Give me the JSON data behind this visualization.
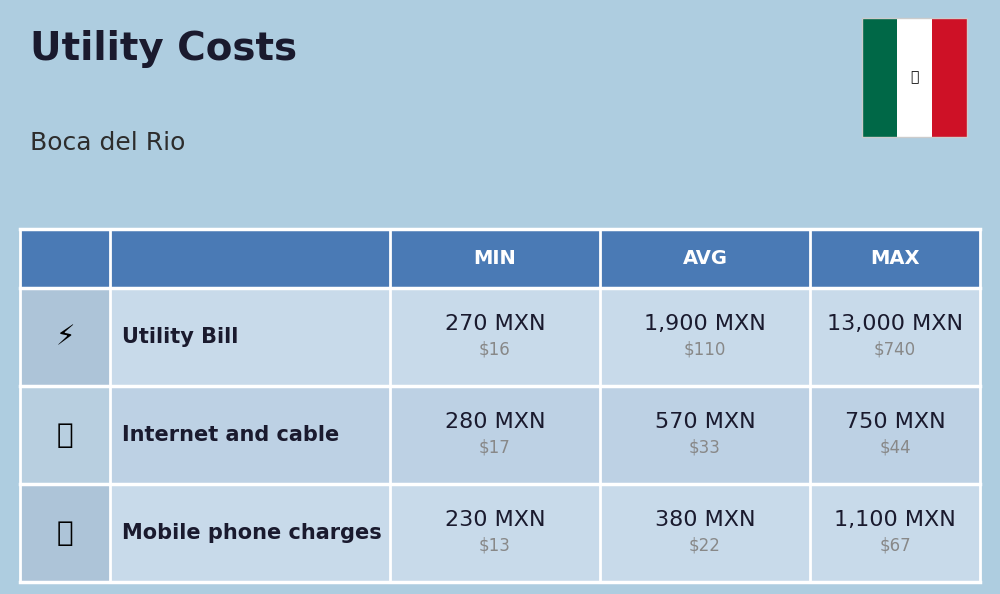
{
  "title": "Utility Costs",
  "subtitle": "Boca del Rio",
  "background_color": "#aecde0",
  "table_header_color": "#4a7ab5",
  "table_header_text_color": "#ffffff",
  "table_row_color_1": "#c8daea",
  "table_row_color_2": "#bdd1e4",
  "col_headers": [
    "MIN",
    "AVG",
    "MAX"
  ],
  "rows": [
    {
      "label": "Utility Bill",
      "min_mxn": "270 MXN",
      "min_usd": "$16",
      "avg_mxn": "1,900 MXN",
      "avg_usd": "$110",
      "max_mxn": "13,000 MXN",
      "max_usd": "$740"
    },
    {
      "label": "Internet and cable",
      "min_mxn": "280 MXN",
      "min_usd": "$17",
      "avg_mxn": "570 MXN",
      "avg_usd": "$33",
      "max_mxn": "750 MXN",
      "max_usd": "$44"
    },
    {
      "label": "Mobile phone charges",
      "min_mxn": "230 MXN",
      "min_usd": "$13",
      "avg_mxn": "380 MXN",
      "avg_usd": "$22",
      "max_mxn": "1,100 MXN",
      "max_usd": "$67"
    }
  ],
  "title_fontsize": 28,
  "subtitle_fontsize": 18,
  "header_fontsize": 14,
  "cell_mxn_fontsize": 16,
  "cell_usd_fontsize": 12,
  "label_fontsize": 15,
  "title_color": "#1a1a2e",
  "subtitle_color": "#2d2d2d",
  "label_color": "#1a1a2e",
  "mxn_color": "#1a1a2e",
  "usd_color": "#888888",
  "separator_color": "#ffffff",
  "flag_green": "#006847",
  "flag_white": "#FFFFFF",
  "flag_red": "#CE1126"
}
